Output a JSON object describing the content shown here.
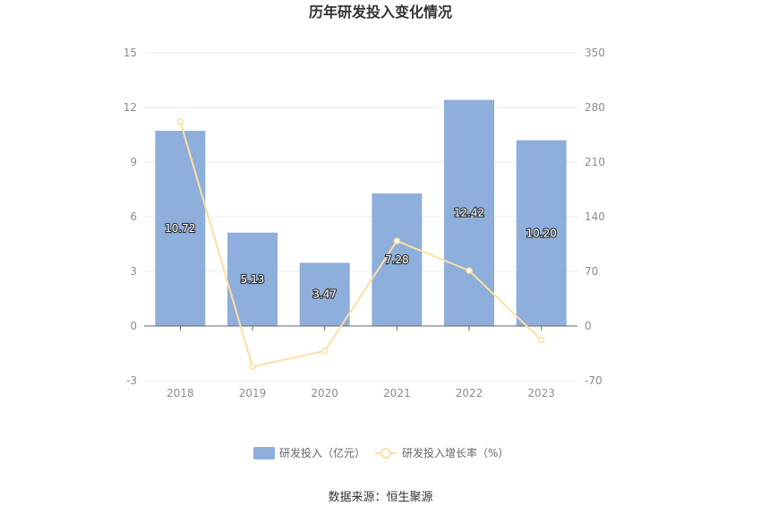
{
  "chart_data": {
    "type": "bar",
    "title": "历年研发投入变化情况",
    "categories": [
      "2018",
      "2019",
      "2020",
      "2021",
      "2022",
      "2023"
    ],
    "series": [
      {
        "name": "研发投入（亿元）",
        "type": "bar",
        "axis": "left",
        "values": [
          10.72,
          5.13,
          3.47,
          7.28,
          12.42,
          10.2
        ],
        "labels": [
          "10.72",
          "5.13",
          "3.47",
          "7.28",
          "12.42",
          "10.20"
        ]
      },
      {
        "name": "研发投入增长率（%）",
        "type": "line",
        "axis": "right",
        "values": [
          262,
          -52,
          -32,
          109,
          71,
          -18
        ]
      }
    ],
    "y_left": {
      "min": -3,
      "max": 15,
      "ticks": [
        "15",
        "12",
        "9",
        "6",
        "3",
        "0",
        "-3"
      ]
    },
    "y_right": {
      "min": -70,
      "max": 350,
      "ticks": [
        "350",
        "280",
        "210",
        "140",
        "70",
        "0",
        "-70"
      ]
    },
    "grid": true,
    "legend_position": "bottom",
    "colors": {
      "bar": "#8eaedb",
      "line": "#fddea2",
      "grid": "#e8e8e8",
      "axis": "#666666"
    }
  },
  "source": "数据来源：恒生聚源"
}
